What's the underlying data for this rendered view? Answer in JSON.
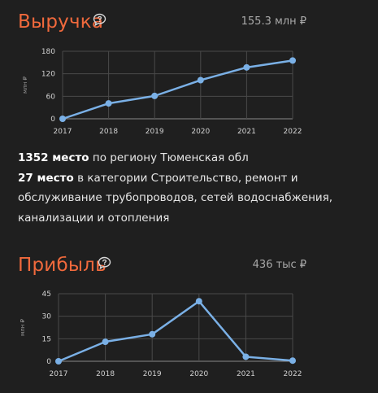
{
  "revenue": {
    "title": "Выручка",
    "total": "155.3 млн ₽",
    "help_icon": "comment-question-icon",
    "chart_data": {
      "type": "line",
      "x": [
        "2017",
        "2018",
        "2019",
        "2020",
        "2021",
        "2022"
      ],
      "values": [
        0,
        41,
        61,
        103,
        137,
        155.3
      ],
      "ylabel": "млн ₽",
      "yticks": [
        0,
        60,
        120,
        180
      ],
      "ylim": [
        0,
        180
      ],
      "grid": true,
      "color": "#7ab0e6"
    }
  },
  "ranking": {
    "region_rank": "1352 место",
    "region_text": " по региону Тюменская обл",
    "category_rank": "27 место",
    "category_text": " в категории Строительство, ремонт и обслуживание трубопроводов, сетей водоснабжения, канализации и отопления"
  },
  "profit": {
    "title": "Прибыль",
    "total": "436 тыс ₽",
    "help_icon": "comment-question-icon",
    "chart_data": {
      "type": "line",
      "x": [
        "2017",
        "2018",
        "2019",
        "2020",
        "2021",
        "2022"
      ],
      "values": [
        0,
        13,
        18,
        40,
        3,
        0.44
      ],
      "ylabel": "млн ₽",
      "yticks": [
        0,
        15,
        30,
        45
      ],
      "ylim": [
        0,
        45
      ],
      "grid": true,
      "color": "#7ab0e6"
    }
  }
}
